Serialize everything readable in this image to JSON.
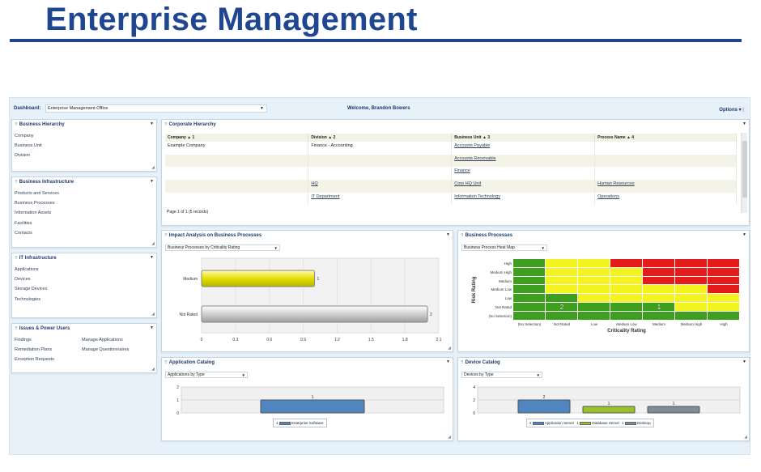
{
  "slide": {
    "title": "Enterprise Management"
  },
  "topbar": {
    "dashboard_label": "Dashboard:",
    "dashboard_value": "Enterprise Management Office",
    "welcome": "Welcome, Brandon Bowers",
    "options_label": "Options"
  },
  "business_hierarchy": {
    "title": "Business Hierarchy",
    "items": [
      "Company",
      "Business Unit",
      "Division"
    ]
  },
  "business_infrastructure": {
    "title": "Business Infrastructure",
    "items": [
      "Products and Services",
      "Business Processes",
      "Information Assets",
      "Facilities",
      "Contacts"
    ]
  },
  "it_infrastructure": {
    "title": "IT Infrastructure",
    "items": [
      "Applications",
      "Devices",
      "Storage Devices",
      "Technologies"
    ]
  },
  "issues_power": {
    "title": "Issues & Power Users",
    "col1": [
      "Findings",
      "Remediation Plans",
      "Exception Requests"
    ],
    "col2": [
      "Manage Applications",
      "Manage Questionnaires"
    ]
  },
  "corporate_hierarchy": {
    "title": "Corporate Hierarchy",
    "columns": [
      "Company",
      "Division",
      "Business Unit",
      "Process Name"
    ],
    "sort_indices": [
      "1",
      "2",
      "3",
      "4"
    ],
    "rows": [
      [
        "Example Company",
        "Finance - Accounting",
        "Accounts Payable",
        ""
      ],
      [
        "",
        "",
        "Accounts Receivable",
        ""
      ],
      [
        "",
        "",
        "Finance",
        ""
      ],
      [
        "",
        "HQ",
        "Corp HQ Unit",
        "Human Resources"
      ],
      [
        "",
        "IT Department",
        "Information Technology",
        "Operations"
      ]
    ],
    "pager": "Page 1 of 1 (5 records)"
  },
  "impact_analysis": {
    "title": "Impact Analysis on Business Processes",
    "dropdown": "Business Processes by Criticality Rating"
  },
  "business_processes": {
    "title": "Business Processes",
    "dropdown": "Business Process Heat Map"
  },
  "application_catalog": {
    "title": "Application Catalog",
    "dropdown": "Applications by Type"
  },
  "device_catalog": {
    "title": "Device Catalog",
    "dropdown": "Devices by Type"
  },
  "colors": {
    "brand": "#1f4690",
    "heat_green": "#3e9e1f",
    "heat_yellow": "#f3f31f",
    "heat_red": "#e41b1b"
  },
  "chart_data": [
    {
      "type": "bar",
      "orientation": "horizontal",
      "categories": [
        "Medium",
        "Not Rated"
      ],
      "values": [
        1,
        2
      ],
      "x_ticks": [
        "0",
        "0.3",
        "0.6",
        "0.9",
        "1.2",
        "1.5",
        "1.8",
        "2.1"
      ],
      "xlim": [
        0,
        2.1
      ],
      "data_labels": [
        "1",
        "2"
      ]
    },
    {
      "type": "heatmap",
      "xlabel": "Criticality Rating",
      "ylabel": "Risk Rating",
      "x_categories": [
        "(No Selection)",
        "Not Rated",
        "Low",
        "Medium Low",
        "Medium",
        "Medium High",
        "High"
      ],
      "y_categories": [
        "High",
        "Medium High",
        "Medium",
        "Medium Low",
        "Low",
        "Not Rated",
        "(No Selection)"
      ],
      "annotations": [
        {
          "x": "Not Rated",
          "y": "Not Rated",
          "text": "2"
        },
        {
          "x": "Medium",
          "y": "Not Rated",
          "text": "1"
        }
      ]
    },
    {
      "type": "bar",
      "categories": [
        "Enterprise Software"
      ],
      "values": [
        1
      ],
      "y_ticks": [
        "0",
        "1",
        "2"
      ],
      "ylim": [
        0,
        2
      ],
      "legend": [
        {
          "count": "1",
          "name": "Enterprise Software"
        }
      ]
    },
    {
      "type": "bar",
      "categories": [
        "Application Server",
        "Database Server",
        "Desktop"
      ],
      "values": [
        2,
        1,
        1
      ],
      "y_ticks": [
        "0",
        "2",
        "4"
      ],
      "ylim": [
        0,
        4
      ],
      "legend": [
        {
          "count": "2",
          "name": "Application Server"
        },
        {
          "count": "1",
          "name": "Database Server"
        },
        {
          "count": "1",
          "name": "Desktop"
        }
      ]
    }
  ]
}
